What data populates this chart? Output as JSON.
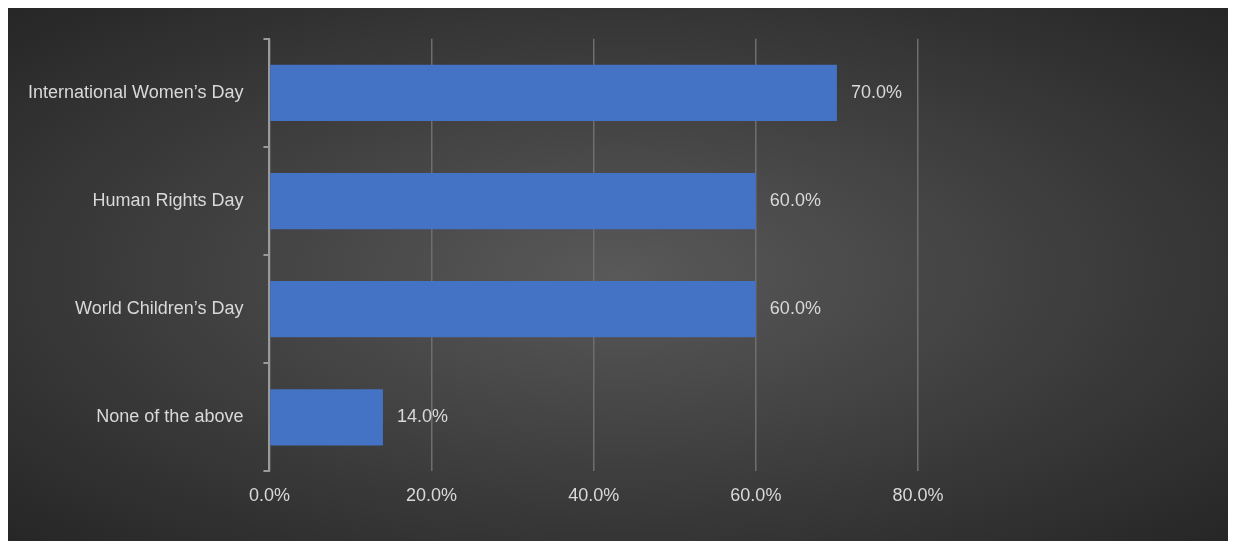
{
  "chart_data": {
    "type": "bar",
    "orientation": "horizontal",
    "categories": [
      "International Women’s Day",
      "Human Rights Day",
      "World Children’s Day",
      "None of the above"
    ],
    "values": [
      70,
      60,
      60,
      14
    ],
    "value_labels": [
      "70.0%",
      "60.0%",
      "60.0%",
      "14.0%"
    ],
    "color": "#4472c4",
    "xlim": [
      0,
      80
    ],
    "xticks": [
      {
        "value": 0,
        "label": "0.0%"
      },
      {
        "value": 20,
        "label": "20.0%"
      },
      {
        "value": 40,
        "label": "40.0%"
      },
      {
        "value": 60,
        "label": "60.0%"
      },
      {
        "value": 80,
        "label": "80.0%"
      }
    ],
    "grid": "x",
    "legend": false
  }
}
